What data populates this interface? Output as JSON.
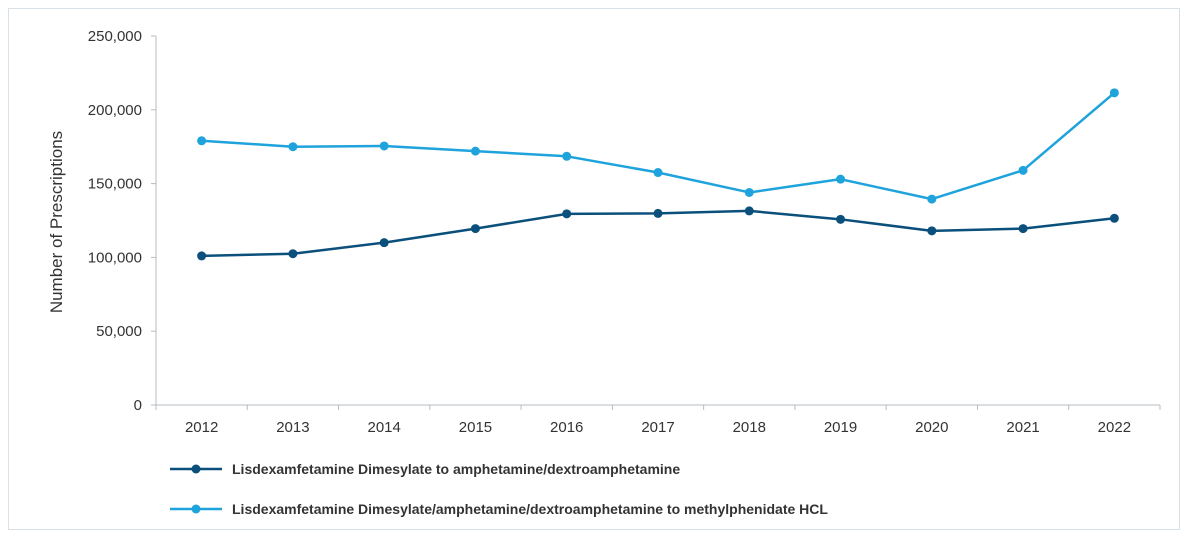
{
  "chart_data": {
    "type": "line",
    "title": "",
    "xlabel": "",
    "ylabel": "Number of Prescriptions",
    "categories": [
      "2012",
      "2013",
      "2014",
      "2015",
      "2016",
      "2017",
      "2018",
      "2019",
      "2020",
      "2021",
      "2022"
    ],
    "ylim": [
      0,
      250000
    ],
    "yticks": [
      "0",
      "50,000",
      "100,000",
      "150,000",
      "200,000",
      "250,000"
    ],
    "yticks_values": [
      0,
      50000,
      100000,
      150000,
      200000,
      250000
    ],
    "grid": false,
    "legend_position": "bottom",
    "series": [
      {
        "name": "Lisdexamfetamine Dimesylate to amphetamine/dextroamphetamine",
        "color": "#0b4f7c",
        "values": [
          101000,
          102500,
          110000,
          119500,
          129500,
          129800,
          131500,
          125800,
          118000,
          119500,
          126500
        ]
      },
      {
        "name": "Lisdexamfetamine Dimesylate/amphetamine/dextroamphetamine to methylphenidate HCL",
        "color": "#1fa3dc",
        "values": [
          179000,
          175000,
          175500,
          172000,
          168500,
          157500,
          144000,
          153000,
          139500,
          159000,
          211500
        ]
      }
    ]
  }
}
